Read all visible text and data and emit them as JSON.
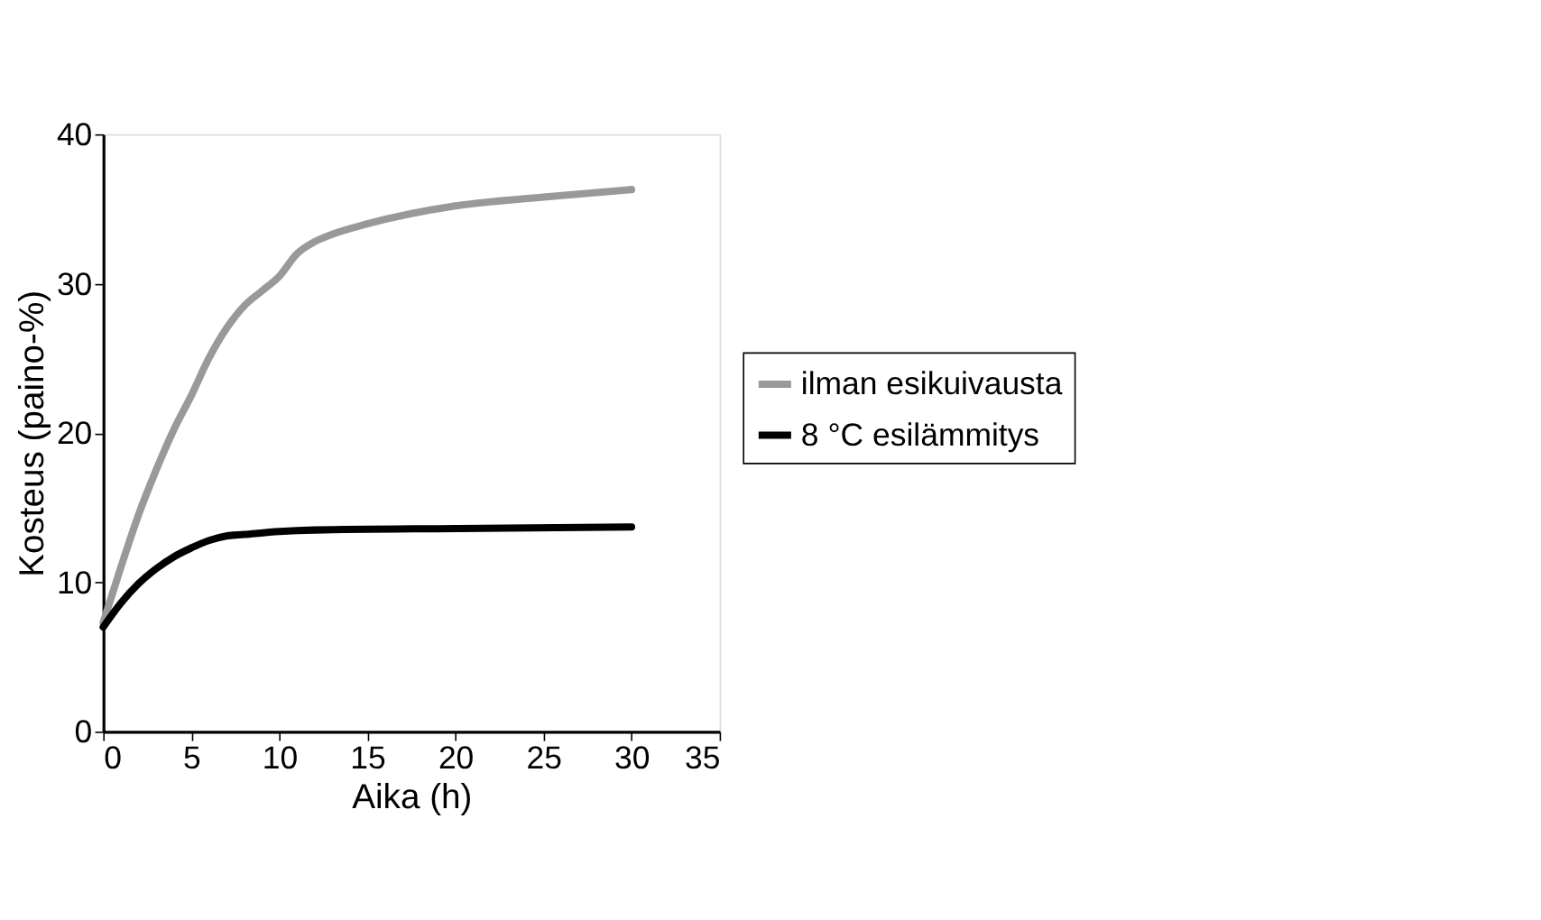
{
  "chart_data": {
    "type": "line",
    "xlabel": "Aika (h)",
    "ylabel": "Kosteus (paino-%)",
    "xlim": [
      0,
      35
    ],
    "ylim": [
      0,
      40
    ],
    "xticks": [
      0,
      5,
      10,
      15,
      20,
      25,
      30,
      35
    ],
    "yticks": [
      0,
      10,
      20,
      30,
      40
    ],
    "grid": false,
    "legend": "right",
    "marker": "none",
    "line_style": "solid",
    "series": [
      {
        "name": "ilman esikuivausta",
        "color": "#999999",
        "x": [
          0,
          1,
          2,
          3,
          4,
          5,
          6,
          7,
          8,
          9,
          10,
          11,
          12,
          13,
          15,
          20,
          25,
          30
        ],
        "values": [
          7.3,
          11,
          14.5,
          17.5,
          20.2,
          22.5,
          25,
          27,
          28.5,
          29.5,
          30.5,
          32,
          32.8,
          33.3,
          34,
          35.2,
          35.8,
          36.3
        ]
      },
      {
        "name": "8 °C esilämmitys",
        "color": "#000000",
        "x": [
          0,
          1,
          2,
          3,
          4,
          5,
          6,
          7,
          8,
          10,
          12,
          20,
          30
        ],
        "values": [
          7,
          8.6,
          9.9,
          10.9,
          11.7,
          12.3,
          12.8,
          13.1,
          13.2,
          13.4,
          13.5,
          13.6,
          13.7
        ]
      }
    ]
  }
}
